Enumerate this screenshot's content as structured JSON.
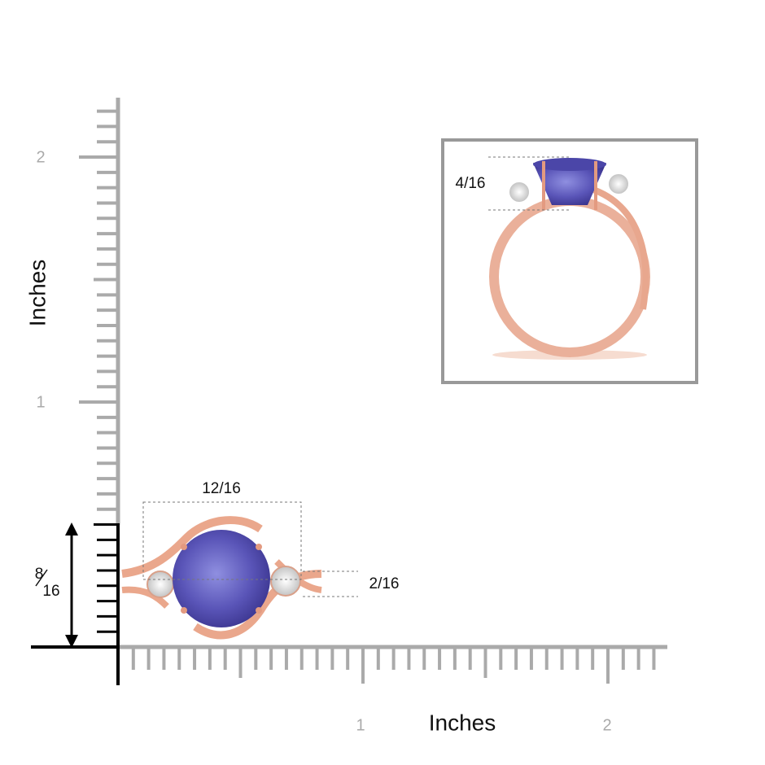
{
  "axes": {
    "y_label": "Inches",
    "x_label": "Inches",
    "y_ticks": [
      "2",
      "1"
    ],
    "x_ticks": [
      "1",
      "2"
    ]
  },
  "dimensions": {
    "top_width": "12/16",
    "side_stone": "2/16",
    "side_height": "4/16",
    "front_height": {
      "numerator": "8",
      "denominator": "16"
    }
  }
}
